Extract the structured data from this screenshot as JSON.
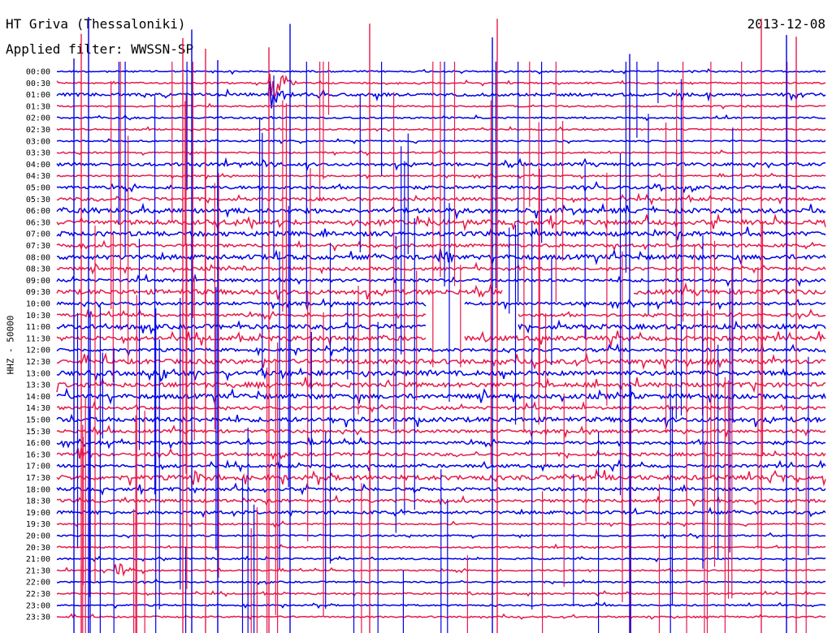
{
  "header": {
    "title": "HT Griva (Thessaloniki)",
    "date": "2013-12-08",
    "filter": "Applied filter: WWSSN-SP"
  },
  "chart_data": {
    "type": "line",
    "title": "HT Griva (Thessaloniki)",
    "subtitle": "Applied filter: WWSSN-SP",
    "ylabel": "HHZ - 50000",
    "xlabel": "",
    "grid": false,
    "row_labels": [
      "00:00",
      "00:30",
      "01:00",
      "01:30",
      "02:00",
      "02:30",
      "03:00",
      "03:30",
      "04:00",
      "04:30",
      "05:00",
      "05:30",
      "06:00",
      "06:30",
      "07:00",
      "07:30",
      "08:00",
      "08:30",
      "09:00",
      "09:30",
      "10:00",
      "10:30",
      "11:00",
      "11:30",
      "12:00",
      "12:30",
      "13:00",
      "13:30",
      "14:00",
      "14:30",
      "15:00",
      "15:30",
      "16:00",
      "16:30",
      "17:00",
      "17:30",
      "18:00",
      "18:30",
      "19:00",
      "19:30",
      "20:00",
      "20:30",
      "21:00",
      "21:30",
      "22:00",
      "22:30",
      "23:00",
      "23:30"
    ],
    "colors": [
      "#0000e6",
      "#e6194b"
    ],
    "noise_level": [
      1,
      1,
      2,
      1,
      1,
      1,
      1,
      1,
      2,
      1,
      2,
      2,
      3,
      3,
      3,
      2,
      3,
      2,
      2,
      3,
      2,
      2,
      3,
      3,
      2,
      3,
      3,
      3,
      3,
      2,
      3,
      2,
      2,
      2,
      2,
      3,
      2,
      2,
      2,
      1,
      1,
      1,
      1,
      1,
      1,
      1,
      1,
      1
    ],
    "gaps": [
      {
        "row": 19,
        "from": 0.58,
        "to": 0.75
      },
      {
        "row": 20,
        "from": 0.48,
        "to": 0.53
      },
      {
        "row": 21,
        "from": 0.48,
        "to": 0.6
      },
      {
        "row": 22,
        "from": 0.48,
        "to": 0.6
      },
      {
        "row": 23,
        "from": 0.48,
        "to": 0.53
      }
    ],
    "events": [
      {
        "row": 1,
        "x": 0.28,
        "amp": 30
      },
      {
        "row": 2,
        "x": 0.28,
        "amp": 20
      },
      {
        "row": 8,
        "x": 0.27,
        "amp": 5
      },
      {
        "row": 10,
        "x": 0.78,
        "amp": 8
      },
      {
        "row": 12,
        "x": 0.05,
        "amp": 6
      },
      {
        "row": 13,
        "x": 0.48,
        "amp": 6
      },
      {
        "row": 16,
        "x": 0.5,
        "amp": 9
      },
      {
        "row": 19,
        "x": 0.63,
        "amp": 12
      },
      {
        "row": 21,
        "x": 0.88,
        "amp": 6
      },
      {
        "row": 26,
        "x": 0.14,
        "amp": 9
      },
      {
        "row": 33,
        "x": 0.03,
        "amp": 9
      },
      {
        "row": 35,
        "x": 0.18,
        "amp": 10
      },
      {
        "row": 35,
        "x": 0.93,
        "amp": 9
      },
      {
        "row": 43,
        "x": 0.08,
        "amp": 12
      }
    ]
  }
}
